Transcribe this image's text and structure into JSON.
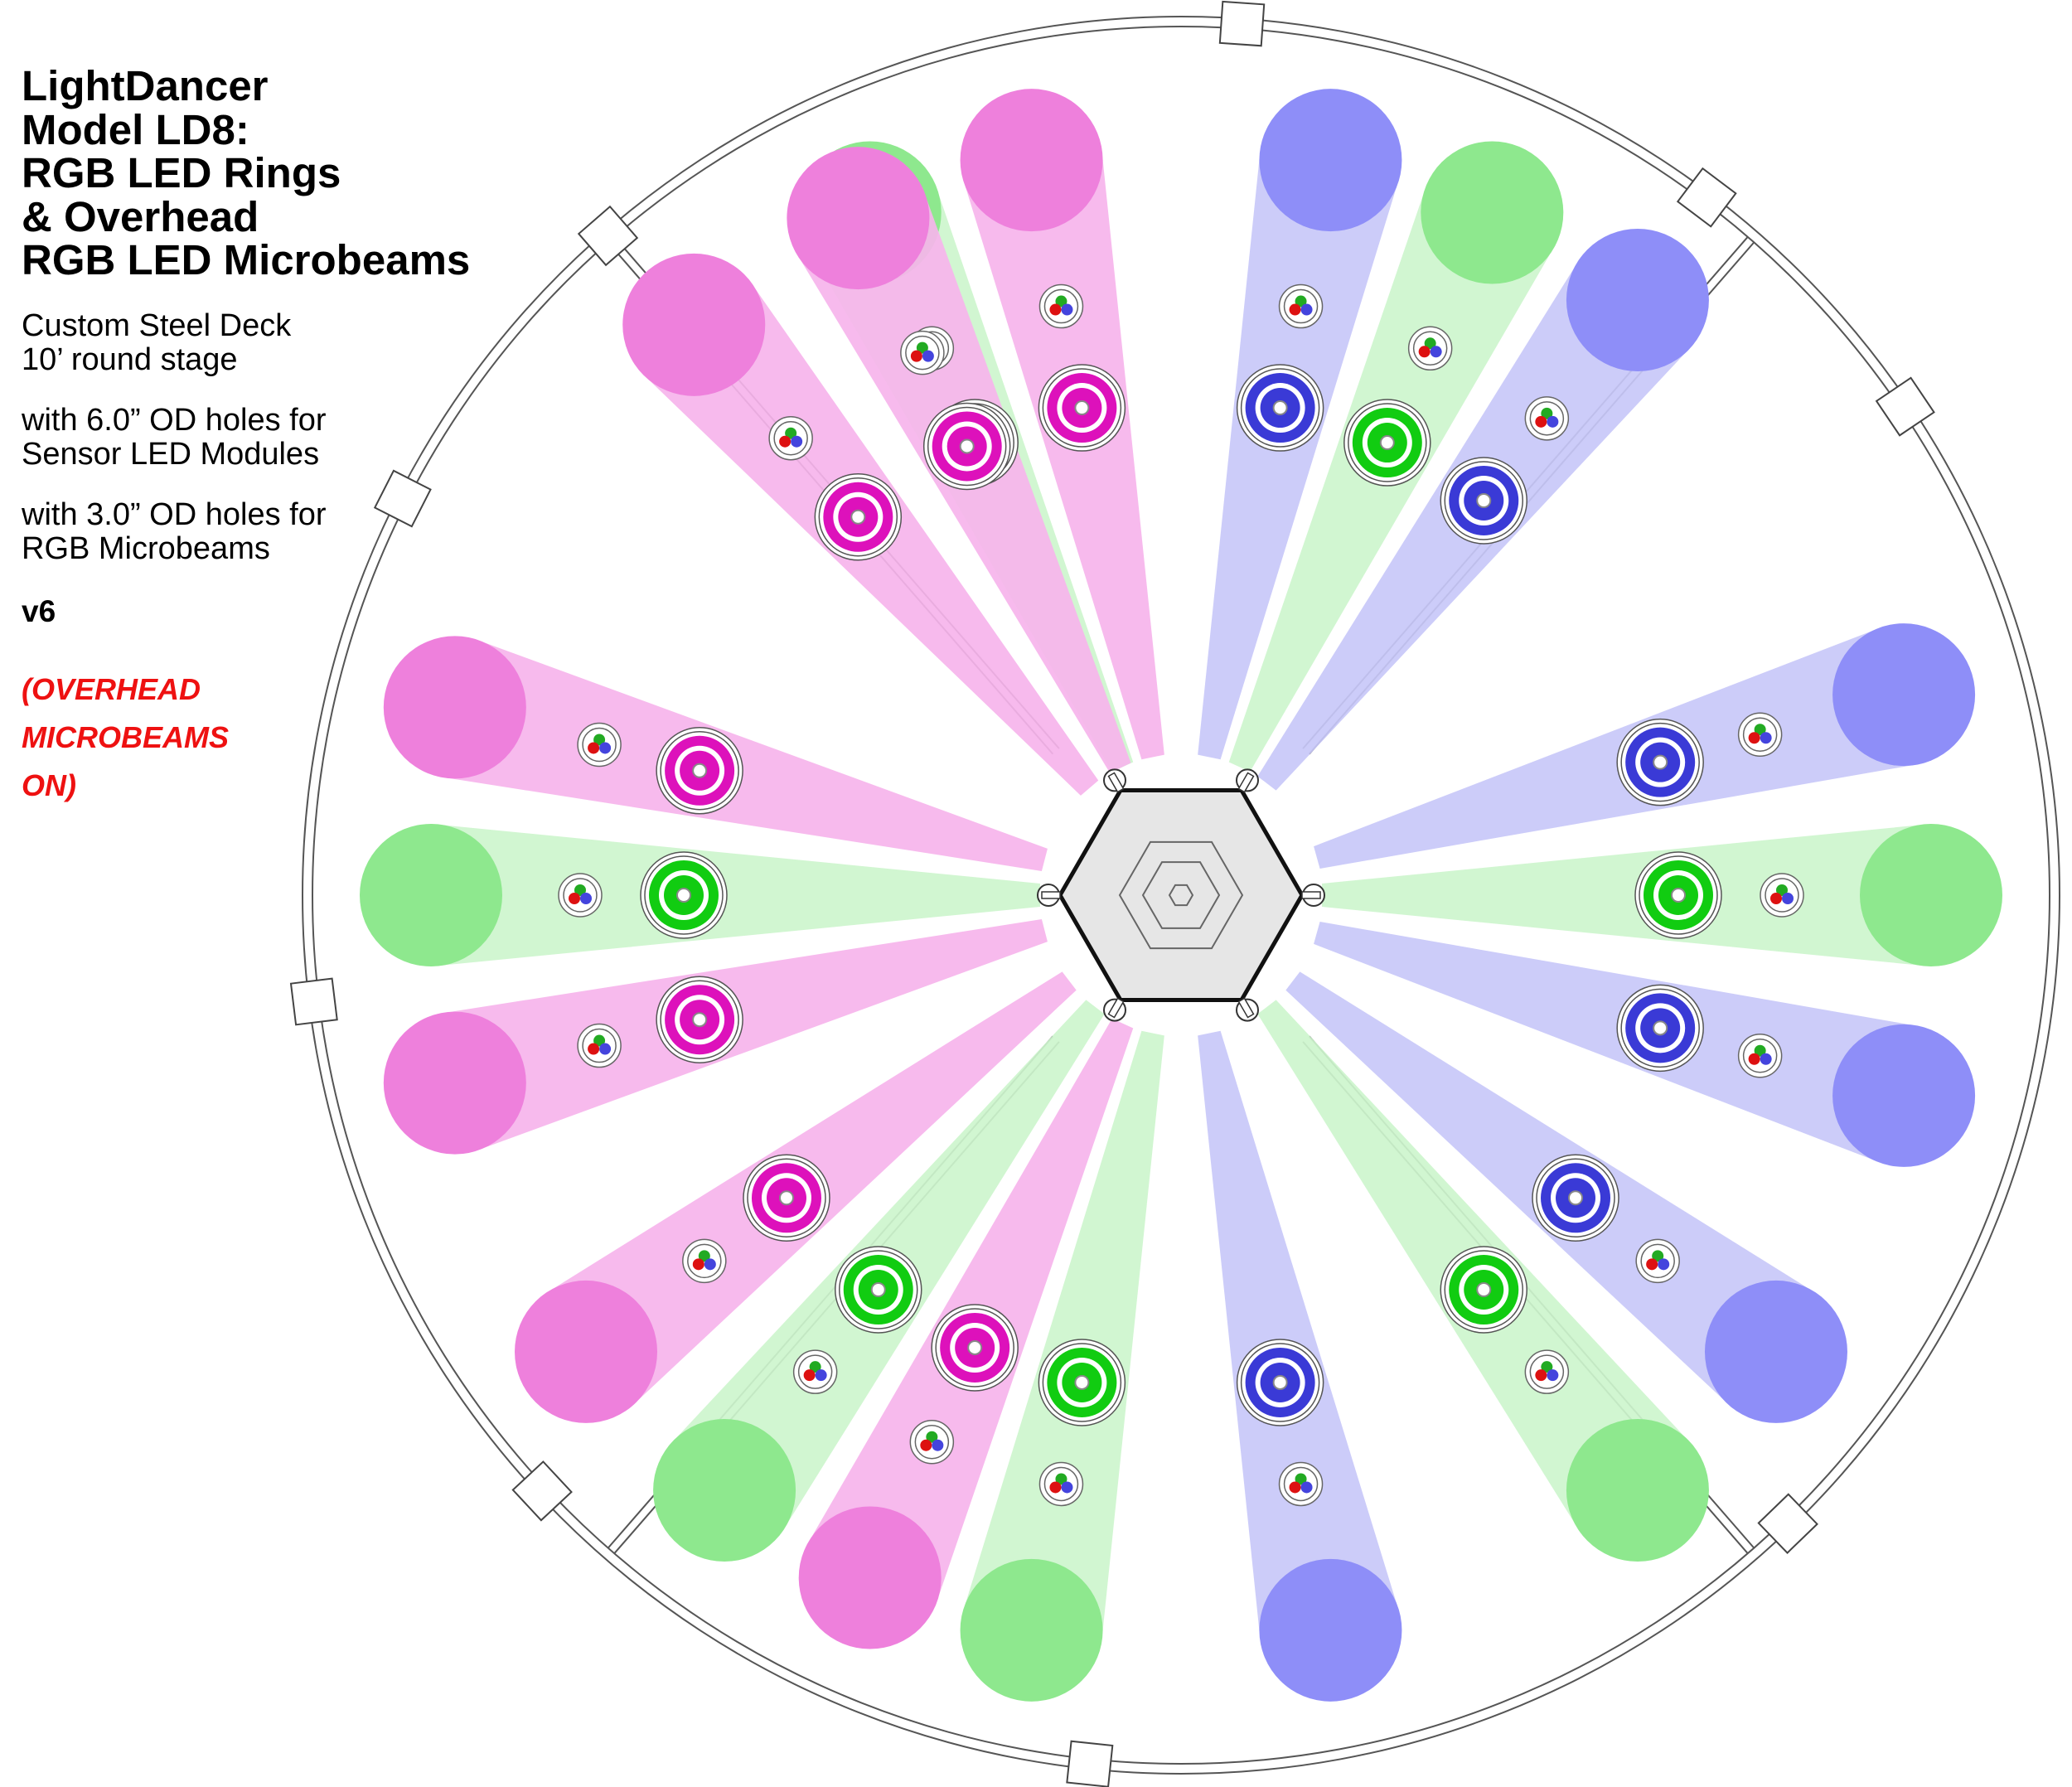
{
  "title_lines": [
    "LightDancer",
    "Model LD8:",
    "RGB LED Rings",
    "& Overhead",
    "RGB LED Microbeams"
  ],
  "stage": [
    "Custom Steel Deck",
    "10’ round stage"
  ],
  "sensor_holes": [
    "with 6.0” OD holes for",
    "Sensor LED Modules"
  ],
  "beam_holes": [
    "with 3.0” OD holes for",
    "RGB Microbeams"
  ],
  "version": "v6",
  "status_lines": [
    "(OVERHEAD",
    "MICROBEAMS",
    "ON)"
  ],
  "colors": {
    "green_spot": "#8ee88e",
    "green_beam": "#cdf5cd",
    "green_ring": "#11cc11",
    "magenta_spot": "#ee80dc",
    "magenta_beam": "#f6b4ec",
    "magenta_ring": "#dd11bb",
    "blue_spot": "#8e8ef8",
    "blue_beam": "#c8c8f8",
    "blue_ring": "#3a3ad6",
    "hexagon_fill": "#e6e6e6",
    "status_text": "#ee1111"
  },
  "beam_colors_clockwise_from_top_left": [
    "green",
    "magenta",
    "blue",
    "green",
    "blue",
    "blue",
    "green",
    "blue",
    "blue",
    "green",
    "blue",
    "green",
    "magenta",
    "green",
    "magenta",
    "magenta",
    "green",
    "magenta",
    "magenta",
    "magenta"
  ],
  "icons": {
    "sensor_module": "concentric-ring-icon",
    "microbeam": "rgb-cluster-icon",
    "deck_connector": "square-bracket-icon"
  }
}
